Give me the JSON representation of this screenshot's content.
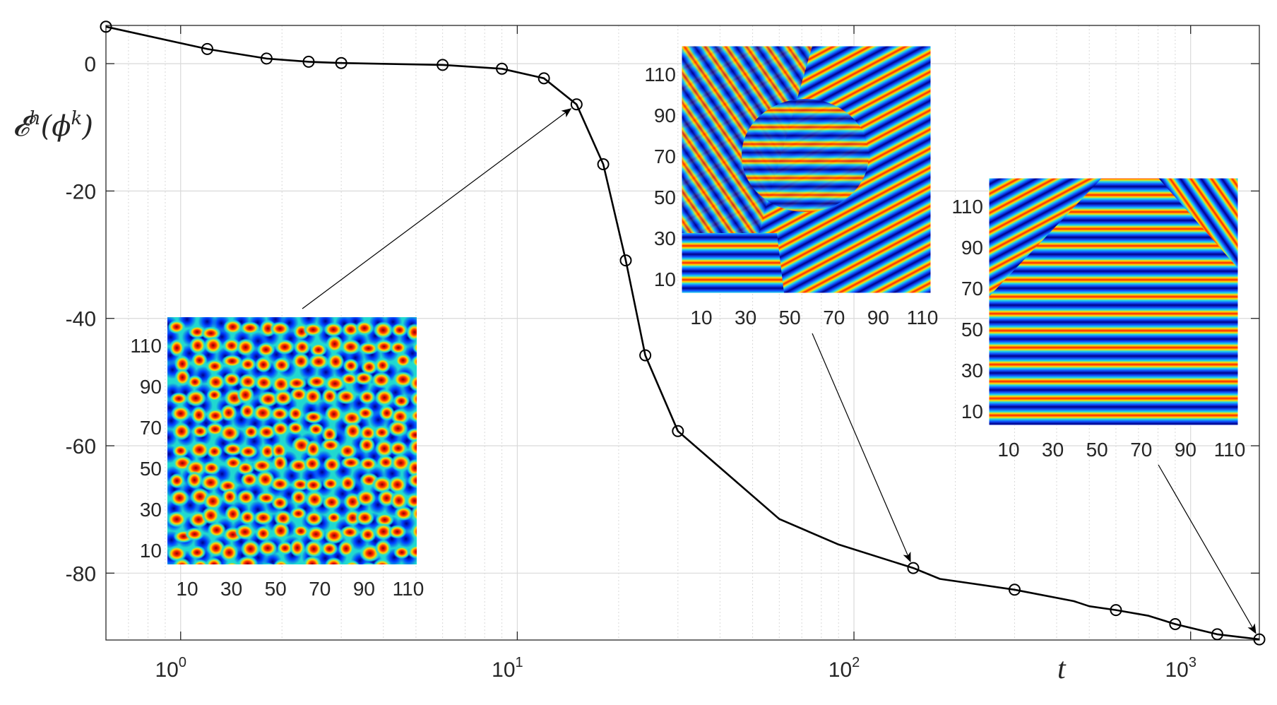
{
  "chart_data": {
    "type": "line",
    "xscale": "log",
    "xlim": [
      0.6,
      1600
    ],
    "ylim": [
      -90.5,
      6
    ],
    "grid": true,
    "xlabel": "t",
    "ylabel": "𝓔",
    "ylabel_sup": "h",
    "ylabel_arg": "(ϕ",
    "ylabel_arg_sup": "k",
    "ylabel_close": ")",
    "x_ticks": [
      1,
      10,
      100,
      1000
    ],
    "x_tick_base": "10",
    "x_tick_exponents": [
      "0",
      "1",
      "2",
      "3"
    ],
    "y_ticks": [
      0,
      -20,
      -40,
      -60,
      -80
    ],
    "y_tick_labels": [
      "0",
      "-20",
      "-40",
      "-60",
      "-80"
    ],
    "series": [
      {
        "color": "#000000",
        "marker": "circle-open",
        "line_points": {
          "x": [
            0.6,
            1.2,
            1.8,
            2.4,
            3,
            6,
            9,
            12,
            15,
            18,
            21,
            24,
            30,
            60,
            90,
            150,
            180,
            300,
            450,
            500,
            600,
            750,
            900,
            1200,
            1600
          ],
          "y": [
            5.8,
            2.3,
            0.8,
            0.3,
            0.1,
            -0.2,
            -0.8,
            -2.3,
            -6.4,
            -15.8,
            -30.9,
            -45.8,
            -57.7,
            -71.5,
            -75.5,
            -79.2,
            -80.9,
            -82.6,
            -84.4,
            -85.2,
            -85.8,
            -86.7,
            -88.0,
            -89.6,
            -90.4
          ]
        },
        "marker_points": {
          "x": [
            0.6,
            1.2,
            1.8,
            2.4,
            3,
            6,
            9,
            12,
            15,
            18,
            21,
            24,
            30,
            150,
            300,
            600,
            900,
            1200,
            1600
          ],
          "y": [
            5.8,
            2.3,
            0.8,
            0.3,
            0.1,
            -0.2,
            -0.8,
            -2.3,
            -6.4,
            -15.8,
            -30.9,
            -45.8,
            -57.7,
            -79.2,
            -82.6,
            -85.8,
            -88.0,
            -89.6,
            -90.4
          ]
        }
      }
    ],
    "insets": [
      {
        "colormap": "jet",
        "pattern": "spots",
        "x_tick_labels": [
          "10",
          "30",
          "50",
          "70",
          "90",
          "110"
        ],
        "y_tick_labels": [
          "110",
          "90",
          "70",
          "50",
          "30",
          "10"
        ],
        "arrow_to": {
          "x": 15,
          "y": -6.4
        }
      },
      {
        "colormap": "jet",
        "pattern": "stripes",
        "x_tick_labels": [
          "10",
          "30",
          "50",
          "70",
          "90",
          "110"
        ],
        "y_tick_labels": [
          "110",
          "90",
          "70",
          "50",
          "30",
          "10"
        ],
        "arrow_to": {
          "x": 150,
          "y": -79.2
        }
      },
      {
        "colormap": "jet",
        "pattern": "stripes",
        "x_tick_labels": [
          "10",
          "30",
          "50",
          "70",
          "90",
          "110"
        ],
        "y_tick_labels": [
          "110",
          "90",
          "70",
          "50",
          "30",
          "10"
        ],
        "arrow_to": {
          "x": 1600,
          "y": -90.4
        }
      }
    ]
  }
}
